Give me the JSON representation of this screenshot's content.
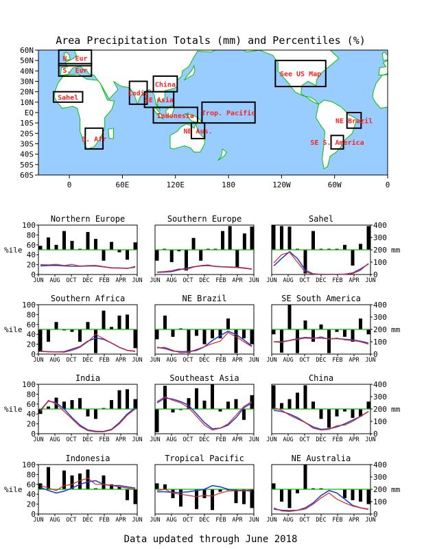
{
  "title": "Area Precipitation Totals (mm) and Percentiles (%)",
  "footer": "Data updated through June 2018",
  "map": {
    "lat_labels": [
      "60N",
      "50N",
      "40N",
      "30N",
      "20N",
      "10N",
      "EQ",
      "10S",
      "20S",
      "30S",
      "40S",
      "50S",
      "60S"
    ],
    "lon_labels": [
      "0",
      "60E",
      "120E",
      "180",
      "120W",
      "60W",
      "0"
    ],
    "regions": [
      {
        "label": "N. Eur",
        "lon": [
          -12,
          25
        ],
        "lat": [
          45,
          60
        ]
      },
      {
        "label": "S. Eur",
        "lon": [
          -12,
          25
        ],
        "lat": [
          35,
          47
        ]
      },
      {
        "label": "Sahel",
        "lon": [
          -18,
          15
        ],
        "lat": [
          10,
          20
        ]
      },
      {
        "label": "S. Afr",
        "lon": [
          18,
          38
        ],
        "lat": [
          -35,
          -15
        ]
      },
      {
        "label": "India",
        "lon": [
          68,
          88
        ],
        "lat": [
          8,
          30
        ]
      },
      {
        "label": "China",
        "lon": [
          95,
          122
        ],
        "lat": [
          20,
          35
        ]
      },
      {
        "label": "SE Asia",
        "lon": [
          85,
          118
        ],
        "lat": [
          5,
          20
        ]
      },
      {
        "label": "Indonesia",
        "lon": [
          95,
          145
        ],
        "lat": [
          -10,
          5
        ]
      },
      {
        "label": "Trop. Pacific",
        "lon": [
          150,
          210
        ],
        "lat": [
          -10,
          10
        ]
      },
      {
        "label": "NE Aus.",
        "lon": [
          138,
          153
        ],
        "lat": [
          -25,
          -10
        ]
      },
      {
        "label": "See US Map",
        "lon": [
          233,
          290
        ],
        "lat": [
          25,
          50
        ]
      },
      {
        "label": "NE Brazil",
        "lon": [
          314,
          330
        ],
        "lat": [
          -15,
          0
        ]
      },
      {
        "label": "SE S. America",
        "lon": [
          296,
          310
        ],
        "lat": [
          -35,
          -22
        ]
      }
    ]
  },
  "axes_labels": {
    "left": "%ile",
    "right": "mm"
  },
  "month_ticks": [
    "JUN",
    "AUG",
    "OCT",
    "DEC",
    "FEB",
    "APR",
    "JUN"
  ],
  "pct_ticks": [
    "0",
    "20",
    "40",
    "60",
    "80",
    "100"
  ],
  "mm_ticks": [
    "0",
    "100",
    "200",
    "300",
    "400"
  ],
  "colors": {
    "bar": "#000000",
    "percent50": "#00c000",
    "observed": "#e02020",
    "normal": "#2040d0",
    "ocean": "#99ccff",
    "land": "#ffffff",
    "coast": "#00c000",
    "region_label": "#ff2020"
  },
  "chart_data": [
    {
      "type": "bar+line",
      "title": "Northern Europe",
      "percentile": [
        58,
        75,
        60,
        88,
        68,
        52,
        86,
        72,
        28,
        66,
        45,
        30,
        65
      ],
      "precip_mm": [
        80,
        78,
        82,
        73,
        82,
        68,
        72,
        74,
        64,
        52,
        54,
        48,
        66
      ],
      "normal_mm": [
        70,
        72,
        74,
        70,
        68,
        67,
        69,
        70,
        62,
        54,
        52,
        50,
        60
      ]
    },
    {
      "type": "bar+line",
      "title": "Southern Europe",
      "percentile": [
        28,
        52,
        25,
        47,
        8,
        74,
        28,
        52,
        52,
        88,
        98,
        15,
        83,
        97
      ],
      "precip_mm": [
        20,
        24,
        30,
        45,
        40,
        60,
        72,
        78,
        64,
        62,
        58,
        56,
        50,
        42
      ],
      "normal_mm": [
        18,
        20,
        24,
        38,
        50,
        62,
        70,
        72,
        66,
        62,
        60,
        58,
        52,
        44
      ]
    },
    {
      "type": "bar+line",
      "title": "Sahel",
      "percentile": [
        100,
        98,
        97,
        52,
        2,
        88,
        52,
        52,
        52,
        60,
        18,
        62,
        98
      ],
      "precip_mm": [
        95,
        160,
        180,
        100,
        20,
        3,
        1,
        1,
        1,
        2,
        8,
        35,
        90
      ],
      "normal_mm": [
        70,
        130,
        185,
        130,
        35,
        5,
        1,
        1,
        1,
        3,
        12,
        45,
        85
      ]
    },
    {
      "type": "bar+line",
      "title": "Southern Africa",
      "percentile": [
        5,
        25,
        65,
        48,
        45,
        25,
        65,
        2,
        88,
        55,
        78,
        80,
        12
      ],
      "precip_mm": [
        25,
        18,
        18,
        15,
        30,
        55,
        100,
        160,
        125,
        90,
        55,
        30,
        25
      ],
      "normal_mm": [
        22,
        20,
        18,
        20,
        40,
        60,
        105,
        130,
        120,
        90,
        55,
        30,
        22
      ]
    },
    {
      "type": "bar+line",
      "title": "NE Brazil",
      "percentile": [
        30,
        78,
        35,
        52,
        2,
        37,
        20,
        32,
        32,
        72,
        2,
        32,
        20
      ],
      "precip_mm": [
        50,
        55,
        30,
        10,
        15,
        38,
        60,
        85,
        105,
        175,
        140,
        100,
        60
      ],
      "normal_mm": [
        55,
        45,
        25,
        20,
        20,
        30,
        60,
        110,
        150,
        185,
        160,
        115,
        65
      ]
    },
    {
      "type": "bar+line",
      "title": "SE South America",
      "percentile": [
        40,
        3,
        100,
        2,
        68,
        25,
        60,
        2,
        45,
        35,
        25,
        72,
        40
      ],
      "precip_mm": [
        100,
        95,
        110,
        120,
        130,
        125,
        140,
        120,
        130,
        115,
        110,
        100,
        80
      ],
      "normal_mm": [
        100,
        100,
        110,
        125,
        135,
        130,
        130,
        125,
        125,
        120,
        115,
        105,
        90
      ]
    },
    {
      "type": "bar+line",
      "title": "India",
      "percentile": [
        40,
        55,
        73,
        65,
        68,
        72,
        35,
        30,
        52,
        68,
        88,
        90,
        70
      ],
      "precip_mm": [
        180,
        270,
        240,
        180,
        120,
        60,
        25,
        15,
        15,
        30,
        80,
        150,
        200
      ],
      "normal_mm": [
        190,
        265,
        250,
        200,
        130,
        70,
        30,
        20,
        18,
        35,
        90,
        160,
        210
      ],
      "left_offset_bar": 45
    },
    {
      "type": "bar+line",
      "title": "Southeast Asia",
      "percentile": [
        3,
        97,
        43,
        48,
        72,
        92,
        67,
        100,
        45,
        65,
        70,
        28,
        78
      ],
      "precip_mm": [
        260,
        300,
        270,
        250,
        210,
        140,
        70,
        30,
        45,
        80,
        150,
        220,
        260
      ],
      "normal_mm": [
        250,
        290,
        280,
        260,
        230,
        160,
        90,
        40,
        45,
        70,
        130,
        210,
        250
      ]
    },
    {
      "type": "bar+line",
      "title": "China",
      "percentile": [
        98,
        62,
        70,
        83,
        98,
        65,
        30,
        12,
        35,
        45,
        32,
        35,
        65
      ],
      "precip_mm": [
        210,
        190,
        150,
        120,
        90,
        45,
        30,
        35,
        65,
        70,
        100,
        140,
        180
      ],
      "normal_mm": [
        190,
        180,
        160,
        130,
        90,
        55,
        35,
        40,
        55,
        80,
        110,
        140,
        180
      ]
    },
    {
      "type": "bar+line",
      "title": "Indonesia",
      "percentile": [
        62,
        95,
        50,
        88,
        78,
        82,
        90,
        52,
        78,
        60,
        55,
        28,
        20
      ],
      "precip_mm": [
        230,
        210,
        190,
        230,
        240,
        270,
        290,
        240,
        240,
        230,
        220,
        210,
        200
      ],
      "normal_mm": [
        215,
        190,
        170,
        185,
        210,
        240,
        260,
        270,
        240,
        230,
        230,
        220,
        210
      ]
    },
    {
      "type": "bar+line",
      "title": "Tropical Pacific",
      "percentile": [
        62,
        60,
        32,
        15,
        50,
        10,
        32,
        8,
        45,
        48,
        22,
        20,
        12
      ],
      "precip_mm": [
        190,
        200,
        170,
        160,
        150,
        140,
        150,
        145,
        170,
        185,
        190,
        185,
        200
      ],
      "normal_mm": [
        180,
        180,
        175,
        175,
        180,
        190,
        200,
        230,
        220,
        200,
        190,
        190,
        185
      ],
      "left_offset_bar": 35
    },
    {
      "type": "bar+line",
      "title": "NE Australia",
      "percentile": [
        62,
        25,
        12,
        42,
        100,
        52,
        52,
        50,
        50,
        32,
        28,
        25,
        20
      ],
      "precip_mm": [
        50,
        25,
        20,
        30,
        40,
        80,
        130,
        170,
        120,
        90,
        65,
        50,
        40
      ],
      "normal_mm": [
        40,
        30,
        28,
        30,
        50,
        90,
        150,
        190,
        170,
        120,
        70,
        50,
        38
      ]
    }
  ]
}
